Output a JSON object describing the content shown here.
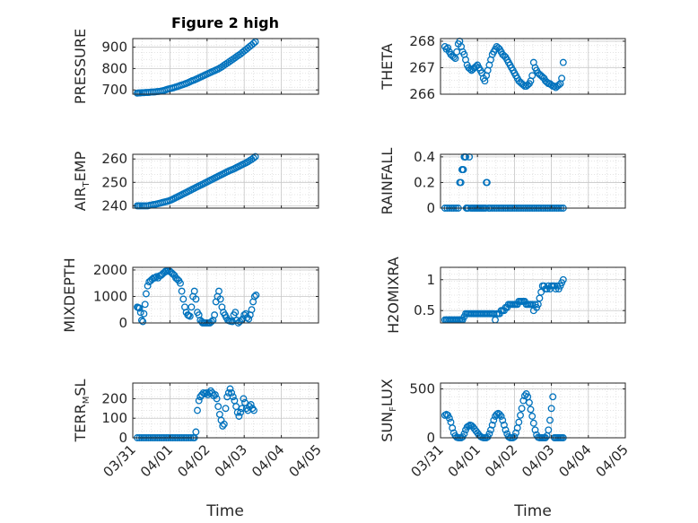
{
  "figure": {
    "title": "Figure 2 high",
    "xlabel": "Time"
  },
  "x_ticks": [
    "03/31",
    "04/01",
    "04/02",
    "04/03",
    "04/04",
    "04/05"
  ],
  "marker_color": "#0072BD",
  "chart_data": [
    {
      "type": "scatter",
      "name": "pressure-chart",
      "col": 0,
      "row": 0,
      "ylabel": {
        "main": "PRESSURE",
        "sub": ""
      },
      "ylim": [
        680,
        940
      ],
      "yticks": [
        700,
        800,
        900
      ],
      "ytick_labels": [
        "700",
        "800",
        "900"
      ],
      "x": [
        0.12,
        0.16,
        0.2,
        0.25,
        0.3,
        0.35,
        0.4,
        0.45,
        0.5,
        0.55,
        0.6,
        0.65,
        0.7,
        0.75,
        0.8,
        0.85,
        0.9,
        0.95,
        1.0,
        1.05,
        1.1,
        1.15,
        1.2,
        1.25,
        1.3,
        1.35,
        1.4,
        1.45,
        1.5,
        1.55,
        1.6,
        1.65,
        1.7,
        1.75,
        1.8,
        1.85,
        1.9,
        1.95,
        2.0,
        2.05,
        2.1,
        2.15,
        2.2,
        2.25,
        2.3,
        2.35,
        2.4,
        2.45,
        2.5,
        2.55,
        2.6,
        2.65,
        2.7,
        2.75,
        2.8,
        2.85,
        2.9,
        2.95,
        3.0,
        3.05,
        3.1,
        3.15,
        3.2,
        3.25,
        3.3
      ],
      "y": [
        685,
        686,
        686,
        687,
        687,
        688,
        688,
        689,
        690,
        690,
        691,
        692,
        693,
        694,
        696,
        698,
        701,
        704,
        706,
        708,
        710,
        713,
        716,
        719,
        722,
        725,
        728,
        731,
        735,
        739,
        743,
        746,
        750,
        754,
        758,
        762,
        766,
        770,
        774,
        778,
        782,
        786,
        790,
        794,
        798,
        803,
        808,
        814,
        820,
        826,
        832,
        838,
        844,
        850,
        856,
        862,
        868,
        875,
        882,
        889,
        896,
        903,
        910,
        918,
        925
      ]
    },
    {
      "type": "scatter",
      "name": "theta-chart",
      "col": 1,
      "row": 0,
      "ylabel": {
        "main": "THETA",
        "sub": ""
      },
      "ylim": [
        266,
        268.1
      ],
      "yticks": [
        266,
        267,
        268
      ],
      "ytick_labels": [
        "266",
        "267",
        "268"
      ],
      "x": [
        0.12,
        0.16,
        0.2,
        0.24,
        0.28,
        0.32,
        0.36,
        0.4,
        0.44,
        0.48,
        0.52,
        0.56,
        0.6,
        0.64,
        0.68,
        0.72,
        0.76,
        0.8,
        0.84,
        0.88,
        0.92,
        0.96,
        1.0,
        1.04,
        1.08,
        1.12,
        1.16,
        1.2,
        1.24,
        1.28,
        1.32,
        1.36,
        1.4,
        1.44,
        1.48,
        1.52,
        1.56,
        1.6,
        1.64,
        1.68,
        1.72,
        1.76,
        1.8,
        1.84,
        1.88,
        1.92,
        1.96,
        2.0,
        2.04,
        2.08,
        2.12,
        2.16,
        2.2,
        2.24,
        2.28,
        2.32,
        2.36,
        2.4,
        2.44,
        2.48,
        2.52,
        2.56,
        2.6,
        2.64,
        2.68,
        2.72,
        2.76,
        2.8,
        2.84,
        2.88,
        2.92,
        2.96,
        3.0,
        3.04,
        3.08,
        3.12,
        3.16,
        3.2,
        3.24,
        3.28,
        3.32
      ],
      "y": [
        267.8,
        267.7,
        267.75,
        267.6,
        267.5,
        267.45,
        267.4,
        267.35,
        267.6,
        267.9,
        268.0,
        267.8,
        267.6,
        267.5,
        267.3,
        267.1,
        267.0,
        266.95,
        266.9,
        266.95,
        267.0,
        267.05,
        267.1,
        267.0,
        266.9,
        266.8,
        266.6,
        266.5,
        266.7,
        266.9,
        267.1,
        267.3,
        267.5,
        267.6,
        267.7,
        267.8,
        267.75,
        267.7,
        267.6,
        267.5,
        267.45,
        267.4,
        267.3,
        267.2,
        267.1,
        267.0,
        266.9,
        266.8,
        266.7,
        266.6,
        266.5,
        266.45,
        266.4,
        266.35,
        266.3,
        266.3,
        266.35,
        266.4,
        266.5,
        266.7,
        267.2,
        267.0,
        266.9,
        266.8,
        266.75,
        266.7,
        266.65,
        266.6,
        266.5,
        266.45,
        266.4,
        266.4,
        266.35,
        266.3,
        266.3,
        266.25,
        266.3,
        266.35,
        266.4,
        266.6,
        267.2
      ]
    },
    {
      "type": "scatter",
      "name": "air-temp-chart",
      "col": 0,
      "row": 1,
      "ylabel": {
        "main": "AIR",
        "sub": "T",
        "tail": "EMP"
      },
      "ylim": [
        239,
        262
      ],
      "yticks": [
        240,
        250,
        260
      ],
      "ytick_labels": [
        "240",
        "250",
        "260"
      ],
      "x": [
        0.12,
        0.16,
        0.2,
        0.25,
        0.3,
        0.35,
        0.4,
        0.45,
        0.5,
        0.55,
        0.6,
        0.65,
        0.7,
        0.75,
        0.8,
        0.85,
        0.9,
        0.95,
        1.0,
        1.05,
        1.1,
        1.15,
        1.2,
        1.25,
        1.3,
        1.35,
        1.4,
        1.45,
        1.5,
        1.55,
        1.6,
        1.65,
        1.7,
        1.75,
        1.8,
        1.85,
        1.9,
        1.95,
        2.0,
        2.05,
        2.1,
        2.15,
        2.2,
        2.25,
        2.3,
        2.35,
        2.4,
        2.45,
        2.5,
        2.55,
        2.6,
        2.65,
        2.7,
        2.75,
        2.8,
        2.85,
        2.9,
        2.95,
        3.0,
        3.05,
        3.1,
        3.15,
        3.2,
        3.25,
        3.3
      ],
      "y": [
        240,
        240,
        240,
        240,
        240,
        240,
        240,
        240.2,
        240.3,
        240.5,
        240.6,
        240.8,
        241,
        241.2,
        241.4,
        241.6,
        241.8,
        242,
        242.3,
        242.6,
        243,
        243.4,
        243.8,
        244.2,
        244.6,
        245,
        245.4,
        245.8,
        246.2,
        246.6,
        247,
        247.4,
        247.8,
        248.2,
        248.6,
        249,
        249.4,
        249.8,
        250.2,
        250.6,
        251,
        251.4,
        251.8,
        252.2,
        252.6,
        253,
        253.4,
        253.8,
        254.2,
        254.6,
        255,
        255.3,
        255.6,
        256,
        256.4,
        256.8,
        257.2,
        257.6,
        258,
        258.4,
        258.8,
        259.3,
        259.8,
        260.4,
        261
      ]
    },
    {
      "type": "scatter",
      "name": "rainfall-chart",
      "col": 1,
      "row": 1,
      "ylabel": {
        "main": "RAINFALL",
        "sub": ""
      },
      "ylim": [
        0,
        0.42
      ],
      "yticks": [
        0,
        0.2,
        0.4
      ],
      "ytick_labels": [
        "0",
        "0.2",
        "0.4"
      ],
      "x": [
        0.12,
        0.18,
        0.24,
        0.3,
        0.36,
        0.42,
        0.48,
        0.52,
        0.55,
        0.58,
        0.6,
        0.62,
        0.64,
        0.66,
        0.68,
        0.7,
        0.72,
        0.75,
        0.78,
        0.82,
        0.86,
        0.9,
        0.94,
        0.98,
        1.02,
        1.06,
        1.1,
        1.14,
        1.18,
        1.22,
        1.24,
        1.26,
        1.3,
        1.34,
        1.4,
        1.46,
        1.52,
        1.58,
        1.64,
        1.7,
        1.76,
        1.82,
        1.88,
        1.94,
        2.0,
        2.06,
        2.12,
        2.18,
        2.24,
        2.3,
        2.36,
        2.42,
        2.48,
        2.54,
        2.6,
        2.66,
        2.72,
        2.78,
        2.84,
        2.9,
        2.96,
        3.02,
        3.08,
        3.14,
        3.2,
        3.26,
        3.32
      ],
      "y": [
        0,
        0,
        0,
        0,
        0,
        0,
        0,
        0.2,
        0.2,
        0.3,
        0.3,
        0.3,
        0.4,
        0.4,
        0.4,
        0,
        0,
        0,
        0.4,
        0,
        0,
        0,
        0,
        0,
        0,
        0,
        0,
        0,
        0,
        0,
        0.2,
        0.2,
        0,
        0,
        0,
        0,
        0,
        0,
        0,
        0,
        0,
        0,
        0,
        0,
        0,
        0,
        0,
        0,
        0,
        0,
        0,
        0,
        0,
        0,
        0,
        0,
        0,
        0,
        0,
        0,
        0,
        0,
        0,
        0,
        0,
        0,
        0
      ]
    },
    {
      "type": "scatter",
      "name": "mixdepth-chart",
      "col": 0,
      "row": 2,
      "ylabel": {
        "main": "MIXDEPTH",
        "sub": ""
      },
      "ylim": [
        0,
        2100
      ],
      "yticks": [
        0,
        1000,
        2000
      ],
      "ytick_labels": [
        "0",
        "1000",
        "2000"
      ],
      "x": [
        0.12,
        0.15,
        0.18,
        0.21,
        0.24,
        0.27,
        0.3,
        0.33,
        0.36,
        0.4,
        0.44,
        0.48,
        0.52,
        0.56,
        0.6,
        0.64,
        0.68,
        0.72,
        0.76,
        0.8,
        0.84,
        0.88,
        0.92,
        0.96,
        1.0,
        1.04,
        1.08,
        1.12,
        1.16,
        1.2,
        1.24,
        1.28,
        1.32,
        1.36,
        1.4,
        1.44,
        1.48,
        1.5,
        1.54,
        1.58,
        1.62,
        1.66,
        1.7,
        1.74,
        1.78,
        1.82,
        1.86,
        1.88,
        1.92,
        1.96,
        2.0,
        2.04,
        2.08,
        2.12,
        2.16,
        2.2,
        2.24,
        2.28,
        2.32,
        2.36,
        2.4,
        2.44,
        2.48,
        2.52,
        2.56,
        2.6,
        2.64,
        2.68,
        2.72,
        2.76,
        2.8,
        2.84,
        2.88,
        2.92,
        2.96,
        3.0,
        3.04,
        3.08,
        3.12,
        3.16,
        3.2,
        3.24,
        3.28,
        3.32
      ],
      "y": [
        600,
        580,
        560,
        400,
        100,
        50,
        350,
        700,
        1100,
        1400,
        1550,
        1600,
        1650,
        1700,
        1700,
        1750,
        1700,
        1780,
        1800,
        1850,
        1900,
        1950,
        1950,
        1980,
        1950,
        1900,
        1850,
        1800,
        1700,
        1650,
        1600,
        1500,
        1200,
        900,
        600,
        400,
        300,
        280,
        250,
        600,
        1000,
        1200,
        900,
        400,
        300,
        100,
        50,
        0,
        0,
        0,
        0,
        0,
        0,
        50,
        100,
        300,
        800,
        1000,
        1200,
        900,
        600,
        400,
        300,
        200,
        100,
        80,
        60,
        50,
        300,
        400,
        100,
        0,
        50,
        100,
        150,
        300,
        350,
        200,
        150,
        300,
        500,
        800,
        1000,
        1050
      ]
    },
    {
      "type": "scatter",
      "name": "h2omixra-chart",
      "col": 1,
      "row": 2,
      "ylabel": {
        "main": "H2OMIXRA",
        "sub": ""
      },
      "ylim": [
        0.3,
        1.2
      ],
      "yticks": [
        0.5,
        1
      ],
      "ytick_labels": [
        "0.5",
        "1"
      ],
      "x": [
        0.12,
        0.16,
        0.2,
        0.24,
        0.28,
        0.32,
        0.36,
        0.4,
        0.44,
        0.48,
        0.52,
        0.56,
        0.6,
        0.64,
        0.68,
        0.72,
        0.76,
        0.8,
        0.84,
        0.88,
        0.92,
        0.96,
        1.0,
        1.04,
        1.08,
        1.12,
        1.16,
        1.2,
        1.24,
        1.28,
        1.32,
        1.36,
        1.4,
        1.44,
        1.48,
        1.52,
        1.56,
        1.6,
        1.64,
        1.68,
        1.72,
        1.76,
        1.8,
        1.84,
        1.88,
        1.92,
        1.96,
        2.0,
        2.04,
        2.08,
        2.12,
        2.16,
        2.2,
        2.24,
        2.28,
        2.32,
        2.36,
        2.4,
        2.44,
        2.48,
        2.52,
        2.56,
        2.6,
        2.64,
        2.68,
        2.72,
        2.76,
        2.8,
        2.84,
        2.88,
        2.92,
        2.96,
        3.0,
        3.04,
        3.08,
        3.12,
        3.16,
        3.2,
        3.24,
        3.28,
        3.32
      ],
      "y": [
        0.35,
        0.35,
        0.35,
        0.35,
        0.35,
        0.35,
        0.35,
        0.35,
        0.35,
        0.35,
        0.35,
        0.35,
        0.35,
        0.4,
        0.45,
        0.45,
        0.45,
        0.45,
        0.45,
        0.45,
        0.45,
        0.45,
        0.45,
        0.45,
        0.45,
        0.45,
        0.45,
        0.45,
        0.45,
        0.45,
        0.45,
        0.45,
        0.45,
        0.45,
        0.35,
        0.45,
        0.45,
        0.45,
        0.5,
        0.5,
        0.5,
        0.55,
        0.55,
        0.6,
        0.6,
        0.6,
        0.6,
        0.6,
        0.6,
        0.6,
        0.65,
        0.65,
        0.65,
        0.65,
        0.65,
        0.6,
        0.6,
        0.6,
        0.6,
        0.6,
        0.5,
        0.6,
        0.55,
        0.6,
        0.7,
        0.8,
        0.9,
        0.9,
        0.85,
        0.85,
        0.9,
        0.85,
        0.9,
        0.9,
        0.9,
        0.85,
        0.9,
        0.85,
        0.9,
        0.95,
        1.0
      ]
    },
    {
      "type": "scatter",
      "name": "terr-msl-chart",
      "col": 0,
      "row": 3,
      "ylabel": {
        "main": "TERR",
        "sub": "M",
        "tail": "SL"
      },
      "ylim": [
        0,
        280
      ],
      "yticks": [
        0,
        100,
        200
      ],
      "ytick_labels": [
        "0",
        "100",
        "200"
      ],
      "x": [
        0.12,
        0.18,
        0.24,
        0.3,
        0.36,
        0.42,
        0.48,
        0.54,
        0.6,
        0.66,
        0.72,
        0.78,
        0.84,
        0.9,
        0.96,
        1.02,
        1.08,
        1.14,
        1.2,
        1.26,
        1.32,
        1.38,
        1.44,
        1.5,
        1.56,
        1.62,
        1.66,
        1.7,
        1.74,
        1.78,
        1.82,
        1.86,
        1.9,
        1.94,
        1.98,
        2.02,
        2.06,
        2.1,
        2.14,
        2.18,
        2.22,
        2.26,
        2.3,
        2.34,
        2.38,
        2.42,
        2.46,
        2.5,
        2.54,
        2.58,
        2.62,
        2.66,
        2.7,
        2.74,
        2.78,
        2.82,
        2.86,
        2.9,
        2.94,
        2.98,
        3.02,
        3.06,
        3.1,
        3.14,
        3.18,
        3.22,
        3.26
      ],
      "y": [
        0,
        0,
        0,
        0,
        0,
        0,
        0,
        0,
        0,
        0,
        0,
        0,
        0,
        0,
        0,
        0,
        0,
        0,
        0,
        0,
        0,
        0,
        0,
        0,
        0,
        0,
        0,
        30,
        140,
        190,
        210,
        220,
        230,
        225,
        230,
        220,
        230,
        240,
        230,
        215,
        220,
        200,
        160,
        120,
        90,
        60,
        70,
        150,
        210,
        230,
        250,
        230,
        210,
        190,
        160,
        130,
        110,
        130,
        150,
        200,
        180,
        150,
        140,
        160,
        170,
        150,
        140
      ]
    },
    {
      "type": "scatter",
      "name": "sun-flux-chart",
      "col": 1,
      "row": 3,
      "ylabel": {
        "main": "SUN",
        "sub": "F",
        "tail": "LUX"
      },
      "ylim": [
        0,
        560
      ],
      "yticks": [
        0,
        500
      ],
      "ytick_labels": [
        "0",
        "500"
      ],
      "x": [
        0.12,
        0.16,
        0.2,
        0.24,
        0.28,
        0.32,
        0.36,
        0.4,
        0.44,
        0.48,
        0.52,
        0.56,
        0.6,
        0.64,
        0.68,
        0.72,
        0.76,
        0.8,
        0.84,
        0.88,
        0.92,
        0.96,
        1.0,
        1.04,
        1.08,
        1.12,
        1.16,
        1.2,
        1.24,
        1.28,
        1.32,
        1.36,
        1.4,
        1.44,
        1.48,
        1.52,
        1.56,
        1.6,
        1.64,
        1.68,
        1.72,
        1.76,
        1.8,
        1.84,
        1.88,
        1.92,
        1.96,
        2.0,
        2.04,
        2.08,
        2.12,
        2.16,
        2.2,
        2.24,
        2.28,
        2.32,
        2.36,
        2.4,
        2.44,
        2.48,
        2.52,
        2.56,
        2.6,
        2.64,
        2.68,
        2.72,
        2.76,
        2.8,
        2.84,
        2.88,
        2.92,
        2.96,
        3.0,
        3.04,
        3.08,
        3.12,
        3.16,
        3.2,
        3.24,
        3.28,
        3.32
      ],
      "y": [
        230,
        240,
        230,
        200,
        160,
        100,
        50,
        20,
        5,
        0,
        0,
        0,
        10,
        40,
        80,
        110,
        120,
        130,
        125,
        110,
        90,
        70,
        50,
        30,
        15,
        5,
        0,
        0,
        0,
        10,
        40,
        80,
        130,
        180,
        220,
        240,
        250,
        240,
        220,
        180,
        130,
        80,
        40,
        10,
        0,
        0,
        0,
        10,
        50,
        100,
        160,
        230,
        300,
        380,
        430,
        450,
        420,
        360,
        290,
        220,
        150,
        80,
        30,
        5,
        0,
        0,
        0,
        0,
        0,
        20,
        80,
        180,
        300,
        420,
        0,
        0,
        0,
        0,
        0,
        0,
        0
      ]
    }
  ]
}
